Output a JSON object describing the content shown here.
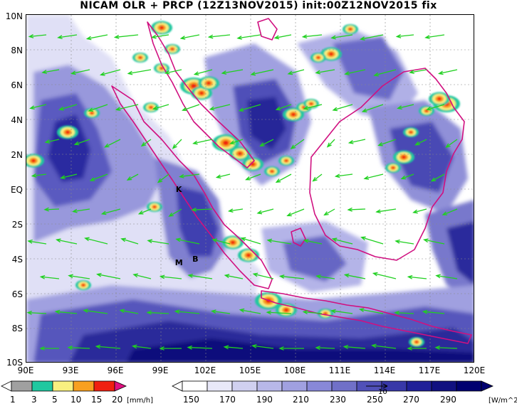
{
  "title": "NICAM OLR + PRCP (12Z13NOV2015) init:00Z12NOV2015 fix",
  "axes": {
    "y_ticks": [
      "10N",
      "8N",
      "6N",
      "4N",
      "2N",
      "EQ",
      "2S",
      "4S",
      "6S",
      "8S",
      "10S"
    ],
    "x_ticks": [
      "90E",
      "93E",
      "96E",
      "99E",
      "102E",
      "105E",
      "108E",
      "111E",
      "114E",
      "117E",
      "120E"
    ]
  },
  "markers": [
    {
      "label": "K",
      "lon": 100.2,
      "lat": 0.0
    },
    {
      "label": "M",
      "lon": 100.2,
      "lat": -4.2
    },
    {
      "label": "B",
      "lon": 101.3,
      "lat": -4.0
    }
  ],
  "precip_colorbar": {
    "labels": [
      "1",
      "3",
      "5",
      "10",
      "15",
      "20"
    ],
    "unit": "[mm/h]",
    "colors": [
      "#ffffff",
      "#a0a0a0",
      "#20c8a0",
      "#f8f080",
      "#f8a020",
      "#f02010",
      "#e01080"
    ]
  },
  "olr_colorbar": {
    "labels": [
      "150",
      "170",
      "190",
      "210",
      "230",
      "250",
      "270",
      "290"
    ],
    "unit": "[W/m^2]",
    "vector_ref": "10",
    "colors": [
      "#ffffff",
      "#e8e8f8",
      "#d0d0f0",
      "#b8b8e8",
      "#a0a0e0",
      "#8888d8",
      "#7070c8",
      "#5050b8",
      "#3838a8",
      "#202098",
      "#101080",
      "#000070"
    ]
  },
  "colors": {
    "coast": "#d01080",
    "wind": "#20d020",
    "grid": "#888888"
  }
}
